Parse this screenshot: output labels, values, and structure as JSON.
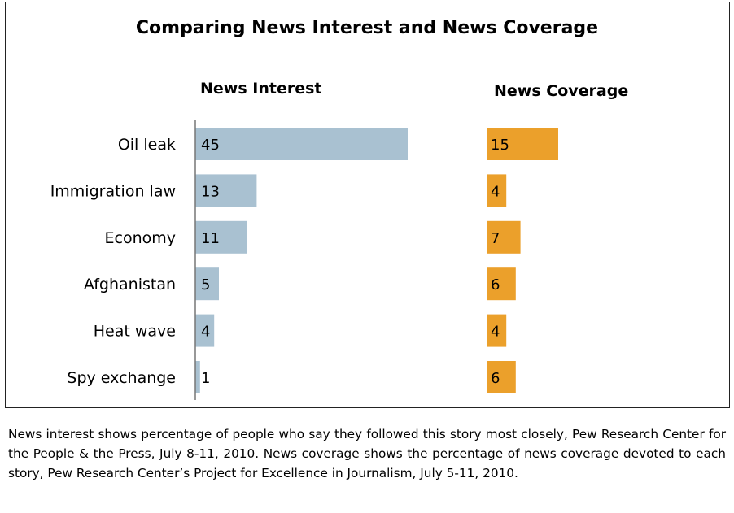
{
  "title": "Comparing News Interest and News Coverage",
  "headers": {
    "interest": "News Interest",
    "coverage": "News Coverage"
  },
  "colors": {
    "interest": "#a9c1d1",
    "coverage": "#eba02b",
    "axis": "#777777"
  },
  "chart_data": {
    "type": "bar",
    "title": "Comparing News Interest and News Coverage",
    "categories": [
      "Oil leak",
      "Immigration law",
      "Economy",
      "Afghanistan",
      "Heat wave",
      "Spy exchange"
    ],
    "series": [
      {
        "name": "News Interest",
        "values": [
          45,
          13,
          11,
          5,
          4,
          1
        ]
      },
      {
        "name": "News Coverage",
        "values": [
          15,
          4,
          7,
          6,
          4,
          6
        ]
      }
    ]
  },
  "note": "News interest shows percentage of people who say they followed this story most closely, Pew Research Center for the People & the Press, July 8-11, 2010. News coverage shows the percentage of news coverage devoted to each story, Pew Research Center’s Project for Excellence in Journalism, July 5-11, 2010."
}
